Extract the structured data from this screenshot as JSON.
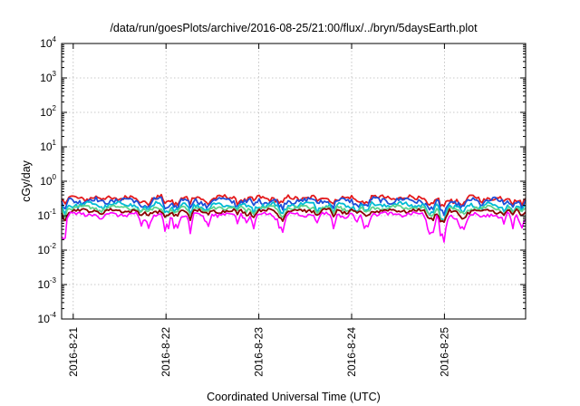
{
  "chart_data": {
    "type": "line",
    "title": "/data/run/goesPlots/archive/2016-08-25/21:00/flux/../bryn/5daysEarth.plot",
    "xlabel": "Coordinated Universal Time (UTC)",
    "ylabel": "cGy/day",
    "yscale": "log",
    "ylim": [
      0.0001,
      10000
    ],
    "xlim": [
      "2016-08-20T21:00",
      "2016-08-25T21:00"
    ],
    "grid": true,
    "legend": "none",
    "y_ticks": [
      {
        "value": 0.0001,
        "base": "10",
        "exp": "-4"
      },
      {
        "value": 0.001,
        "base": "10",
        "exp": "-3"
      },
      {
        "value": 0.01,
        "base": "10",
        "exp": "-2"
      },
      {
        "value": 0.1,
        "base": "10",
        "exp": "-1"
      },
      {
        "value": 1,
        "base": "10",
        "exp": "0"
      },
      {
        "value": 10,
        "base": "10",
        "exp": "1"
      },
      {
        "value": 100,
        "base": "10",
        "exp": "2"
      },
      {
        "value": 1000,
        "base": "10",
        "exp": "3"
      },
      {
        "value": 10000,
        "base": "10",
        "exp": "4"
      }
    ],
    "x_ticks": [
      {
        "value": "2016-08-21T00:00",
        "label": "2016-8-21"
      },
      {
        "value": "2016-08-22T00:00",
        "label": "2016-8-22"
      },
      {
        "value": "2016-08-23T00:00",
        "label": "2016-8-23"
      },
      {
        "value": "2016-08-24T00:00",
        "label": "2016-8-24"
      },
      {
        "value": "2016-08-25T00:00",
        "label": "2016-8-25"
      }
    ],
    "series": [
      {
        "color": "#e41a1c",
        "baseline": 0.33,
        "variation": 0.18,
        "dip_depth": 0.35
      },
      {
        "color": "#1e4fd8",
        "baseline": 0.28,
        "variation": 0.2,
        "dip_depth": 0.45
      },
      {
        "color": "#00bcd4",
        "baseline": 0.21,
        "variation": 0.18,
        "dip_depth": 0.45
      },
      {
        "color": "#5fd38d",
        "baseline": 0.17,
        "variation": 0.14,
        "dip_depth": 0.4
      },
      {
        "color": "#8b0000",
        "baseline": 0.14,
        "variation": 0.12,
        "dip_depth": 0.4
      },
      {
        "color": "#ff00ff",
        "baseline": 0.11,
        "variation": 0.14,
        "dip_depth": 0.75
      }
    ]
  }
}
